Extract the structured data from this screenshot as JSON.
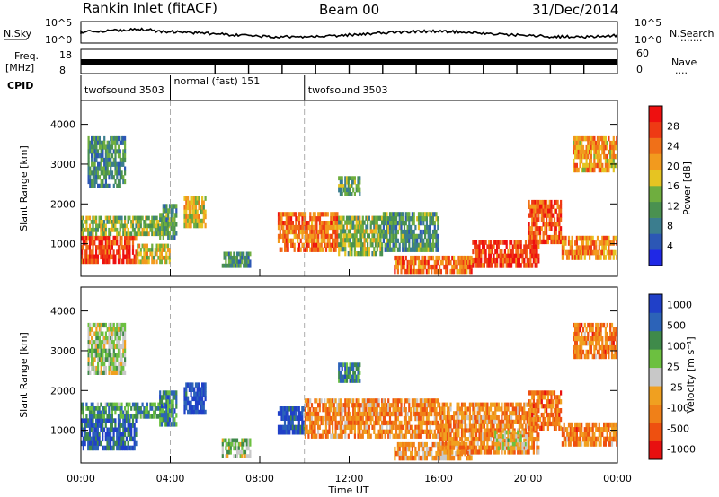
{
  "header": {
    "station": "Rankin Inlet (fitACF)",
    "beam": "Beam 00",
    "date": "31/Dec/2014"
  },
  "strip_labels": {
    "nsky": "N.Sky",
    "nsearch": "N.Search",
    "nsearch_dots": "·······",
    "freq_line1": "Freq.",
    "freq_line2": "[MHz]",
    "nave": "Nave",
    "nave_dots": "····",
    "cpid": "CPID"
  },
  "strip_ticks": {
    "noise_top_left": "10^5",
    "noise_bottom_left": "10^0",
    "noise_top_right": "10^5",
    "noise_bottom_right": "10^0",
    "freq_top": "18",
    "freq_bottom": "8",
    "nave_top": "60",
    "nave_bottom": "0"
  },
  "cpid_segments": [
    {
      "label": "twofsound 3503",
      "start_hour": 0.0
    },
    {
      "label": "normal (fast) 151",
      "start_hour": 4.0
    },
    {
      "label": "twofsound 3503",
      "start_hour": 10.0
    }
  ],
  "colors": {
    "power": [
      "#1f28e6",
      "#2c57b5",
      "#3b7d8e",
      "#4a9150",
      "#6fae3f",
      "#e6c422",
      "#f29a1e",
      "#f07018",
      "#ee3a14",
      "#ee1010"
    ],
    "velocity": [
      "#2040c8",
      "#2c63b8",
      "#3f8a4a",
      "#6cc040",
      "#c8c8c8",
      "#f0a020",
      "#f08018",
      "#ee5010",
      "#e81010"
    ]
  },
  "chart_data": [
    {
      "type": "heatmap",
      "name": "power_panel",
      "xlabel": "",
      "ylabel": "Slant Range [km]",
      "x_ticks": [
        "00:00",
        "04:00",
        "08:00",
        "12:00",
        "16:00",
        "20:00",
        "00:00"
      ],
      "xlim_hours": [
        0,
        24
      ],
      "ylim_km": [
        180,
        4600
      ],
      "y_ticks": [
        1000,
        2000,
        3000,
        4000
      ],
      "colorbar": {
        "label": "Power [dB]",
        "ticks": [
          4,
          8,
          12,
          16,
          20,
          24,
          28
        ],
        "range": [
          0,
          32
        ]
      },
      "regions": [
        {
          "t0": 0.0,
          "t1": 2.5,
          "r0": 500,
          "r1": 1200,
          "level": 0.85
        },
        {
          "t0": 0.0,
          "t1": 4.0,
          "r0": 1200,
          "r1": 1700,
          "level": 0.45
        },
        {
          "t0": 0.3,
          "t1": 2.0,
          "r0": 2400,
          "r1": 3700,
          "level": 0.3
        },
        {
          "t0": 2.5,
          "t1": 4.0,
          "r0": 500,
          "r1": 1000,
          "level": 0.55
        },
        {
          "t0": 4.6,
          "t1": 5.6,
          "r0": 1400,
          "r1": 2200,
          "level": 0.55
        },
        {
          "t0": 3.5,
          "t1": 4.3,
          "r0": 1100,
          "r1": 2000,
          "level": 0.35
        },
        {
          "t0": 6.3,
          "t1": 7.6,
          "r0": 400,
          "r1": 800,
          "level": 0.3
        },
        {
          "t0": 8.8,
          "t1": 11.5,
          "r0": 800,
          "r1": 1800,
          "level": 0.75
        },
        {
          "t0": 11.5,
          "t1": 13.5,
          "r0": 700,
          "r1": 1700,
          "level": 0.45
        },
        {
          "t0": 13.5,
          "t1": 16.0,
          "r0": 800,
          "r1": 1800,
          "level": 0.35
        },
        {
          "t0": 14.0,
          "t1": 17.5,
          "r0": 250,
          "r1": 700,
          "level": 0.75
        },
        {
          "t0": 17.5,
          "t1": 20.5,
          "r0": 400,
          "r1": 1100,
          "level": 0.85
        },
        {
          "t0": 20.0,
          "t1": 21.5,
          "r0": 1000,
          "r1": 2100,
          "level": 0.8
        },
        {
          "t0": 21.5,
          "t1": 24.0,
          "r0": 600,
          "r1": 1200,
          "level": 0.7
        },
        {
          "t0": 22.0,
          "t1": 24.0,
          "r0": 2800,
          "r1": 3700,
          "level": 0.65
        },
        {
          "t0": 11.5,
          "t1": 12.5,
          "r0": 2200,
          "r1": 2700,
          "level": 0.4
        }
      ]
    },
    {
      "type": "heatmap",
      "name": "velocity_panel",
      "xlabel": "Time UT",
      "ylabel": "Slant Range [km]",
      "x_ticks": [
        "00:00",
        "04:00",
        "08:00",
        "12:00",
        "16:00",
        "20:00",
        "00:00"
      ],
      "xlim_hours": [
        0,
        24
      ],
      "ylim_km": [
        180,
        4600
      ],
      "y_ticks": [
        1000,
        2000,
        3000,
        4000
      ],
      "colorbar": {
        "label": "Velocity [m s⁻¹]",
        "ticks": [
          "1000",
          "500",
          "100",
          "25",
          "-25",
          "-100",
          "-500",
          "-1000"
        ]
      },
      "regions": [
        {
          "t0": 0.0,
          "t1": 2.5,
          "r0": 500,
          "r1": 1300,
          "level": 0.15
        },
        {
          "t0": 0.0,
          "t1": 4.0,
          "r0": 1300,
          "r1": 1700,
          "level": 0.3
        },
        {
          "t0": 0.3,
          "t1": 2.0,
          "r0": 2400,
          "r1": 3700,
          "level": 0.45
        },
        {
          "t0": 4.6,
          "t1": 5.6,
          "r0": 1400,
          "r1": 2200,
          "level": 0.05
        },
        {
          "t0": 3.5,
          "t1": 4.3,
          "r0": 1100,
          "r1": 2000,
          "level": 0.25
        },
        {
          "t0": 6.3,
          "t1": 7.6,
          "r0": 300,
          "r1": 800,
          "level": 0.4
        },
        {
          "t0": 8.8,
          "t1": 10.0,
          "r0": 900,
          "r1": 1600,
          "level": 0.1
        },
        {
          "t0": 10.0,
          "t1": 16.0,
          "r0": 800,
          "r1": 1800,
          "level": 0.7
        },
        {
          "t0": 14.0,
          "t1": 17.5,
          "r0": 250,
          "r1": 700,
          "level": 0.65
        },
        {
          "t0": 16.0,
          "t1": 20.5,
          "r0": 400,
          "r1": 1700,
          "level": 0.7
        },
        {
          "t0": 20.0,
          "t1": 21.5,
          "r0": 1000,
          "r1": 2000,
          "level": 0.75
        },
        {
          "t0": 18.5,
          "t1": 20.0,
          "r0": 500,
          "r1": 1000,
          "level": 0.5
        },
        {
          "t0": 21.5,
          "t1": 24.0,
          "r0": 600,
          "r1": 1200,
          "level": 0.72
        },
        {
          "t0": 22.0,
          "t1": 24.0,
          "r0": 2800,
          "r1": 3700,
          "level": 0.72
        },
        {
          "t0": 11.5,
          "t1": 12.5,
          "r0": 2200,
          "r1": 2700,
          "level": 0.25
        }
      ]
    }
  ]
}
